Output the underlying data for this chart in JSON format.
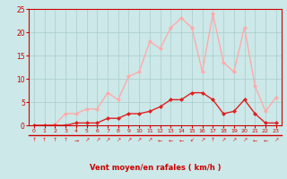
{
  "x": [
    0,
    1,
    2,
    3,
    4,
    5,
    6,
    7,
    8,
    9,
    10,
    11,
    12,
    13,
    14,
    15,
    16,
    17,
    18,
    19,
    20,
    21,
    22,
    23
  ],
  "y_rafales": [
    0.0,
    0.0,
    0.2,
    2.5,
    2.5,
    3.5,
    3.5,
    7.0,
    5.5,
    10.5,
    11.5,
    18.0,
    16.5,
    21.0,
    23.0,
    21.0,
    11.5,
    24.0,
    13.5,
    11.5,
    21.0,
    8.5,
    3.0,
    6.0
  ],
  "y_moyen": [
    0.0,
    0.0,
    0.0,
    0.0,
    0.5,
    0.5,
    0.5,
    1.5,
    1.5,
    2.5,
    2.5,
    3.0,
    4.0,
    5.5,
    5.5,
    7.0,
    7.0,
    5.5,
    2.5,
    3.0,
    5.5,
    2.5,
    0.5,
    0.5
  ],
  "color_rafales": "#ffaaaa",
  "color_moyen": "#dd2222",
  "bg_color": "#cce8e8",
  "grid_color": "#aacccc",
  "axis_color": "#cc0000",
  "text_color": "#cc0000",
  "xlabel": "Vent moyen/en rafales ( km/h )",
  "ylim": [
    0,
    25
  ],
  "xlim": [
    -0.5,
    23.5
  ],
  "yticks": [
    0,
    5,
    10,
    15,
    20,
    25
  ],
  "xticks": [
    0,
    1,
    2,
    3,
    4,
    5,
    6,
    7,
    8,
    9,
    10,
    11,
    12,
    13,
    14,
    15,
    16,
    17,
    18,
    19,
    20,
    21,
    22,
    23
  ],
  "arrows": [
    "↑",
    "↑",
    "↑",
    "↑",
    "→",
    "↗",
    "↗",
    "↗",
    "↗",
    "↗",
    "↗",
    "↗",
    "←",
    "←",
    "←",
    "↙",
    "↗",
    "↑",
    "↗",
    "↗",
    "↗",
    "←",
    "←",
    "↗"
  ]
}
